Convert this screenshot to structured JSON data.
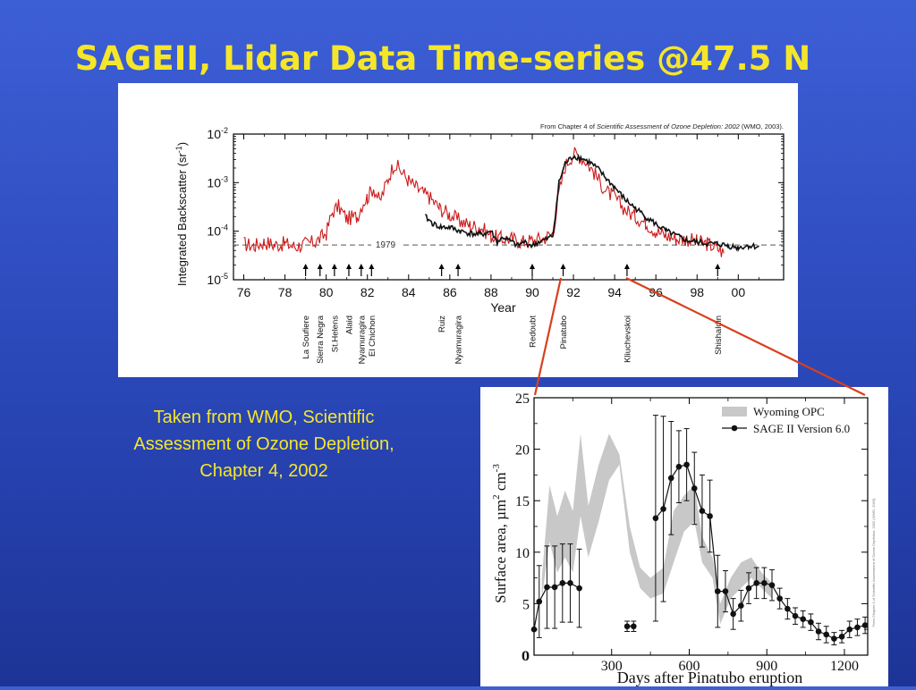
{
  "slide": {
    "title": "SAGEII, Lidar Data Time-series @47.5 N",
    "caption_lines": [
      "Taken from WMO, Scientific",
      "Assessment of Ozone Depletion,",
      "Chapter 4, 2002"
    ]
  },
  "colors": {
    "background": "#2a47b8",
    "title": "#f5e62a",
    "lidar_red": "#cc1a1a",
    "sage_black": "#111111",
    "opc_gray": "#c8c8c8",
    "connector_red": "#d8401c"
  },
  "chart_data": [
    {
      "type": "line",
      "yscale": "log",
      "xlabel": "Year",
      "ylabel_prefix": "Integrated Backscatter (sr",
      "ylabel_exp": "-1",
      "ylabel_suffix": ")",
      "source_note_prefix": "From Chapter 4 of ",
      "source_note_italic": "Scientific Assessment of Ozone Depletion: 2002",
      "source_note_suffix": " (WMO, 2003).",
      "xlim": [
        75.5,
        102.2
      ],
      "ylim": [
        1e-05,
        0.01
      ],
      "x_ticks": [
        76,
        78,
        80,
        82,
        84,
        86,
        88,
        90,
        92,
        94,
        96,
        98,
        0
      ],
      "x_tick_labels": [
        "76",
        "78",
        "80",
        "82",
        "84",
        "86",
        "88",
        "90",
        "92",
        "94",
        "96",
        "98",
        "00"
      ],
      "y_ticks": [
        {
          "value": 0.01,
          "base": "10",
          "exp": "-2"
        },
        {
          "value": 0.001,
          "base": "10",
          "exp": "-3"
        },
        {
          "value": 0.0001,
          "base": "10",
          "exp": "-4"
        },
        {
          "value": 1e-05,
          "base": "10",
          "exp": "-5"
        }
      ],
      "reference_line": {
        "label": "1979",
        "value": 5.2e-05
      },
      "series": [
        {
          "key": "lidar",
          "color": "#cc1a1a",
          "x": [
            76.0,
            76.5,
            77.0,
            77.5,
            78.0,
            78.5,
            79.0,
            79.5,
            80.0,
            80.3,
            80.6,
            81.0,
            81.5,
            81.8,
            82.0,
            82.3,
            82.6,
            83.0,
            83.3,
            83.6,
            84.0,
            84.5,
            85.0,
            85.5,
            86.0,
            86.5,
            87.0,
            87.5,
            88.0,
            88.5,
            89.0,
            89.5,
            90.0,
            90.5,
            91.0,
            91.3,
            91.6,
            92.0,
            92.3,
            92.6,
            93.0,
            93.3,
            93.6,
            94.0,
            94.3,
            94.6,
            95.0,
            95.5,
            96.0,
            96.5,
            97.0,
            97.5,
            98.0,
            98.5,
            99.0,
            99.3
          ],
          "y": [
            5.5e-05,
            5e-05,
            6e-05,
            5.2e-05,
            5.5e-05,
            4.8e-05,
            5.5e-05,
            6e-05,
            9e-05,
            0.00025,
            0.00032,
            0.00018,
            0.0002,
            0.0004,
            0.0005,
            0.0008,
            0.0004,
            0.0012,
            0.0025,
            0.0018,
            0.0011,
            0.0007,
            0.0005,
            0.0003,
            0.00022,
            0.00016,
            0.00013,
            0.00012,
            8e-05,
            7e-05,
            7e-05,
            6e-05,
            6.5e-05,
            7e-05,
            9e-05,
            0.0006,
            0.0022,
            0.004,
            0.0035,
            0.0028,
            0.0016,
            0.001,
            0.00065,
            0.0005,
            0.00035,
            0.00026,
            0.0002,
            0.00015,
            0.0001,
            8e-05,
            7e-05,
            7e-05,
            6e-05,
            5.5e-05,
            4.5e-05,
            3.5e-05
          ]
        },
        {
          "key": "sage",
          "color": "#111111",
          "x": [
            84.8,
            85.2,
            85.6,
            86.0,
            86.5,
            87.0,
            87.5,
            88.0,
            88.3,
            88.6,
            89.0,
            89.3,
            89.6,
            90.0,
            90.3,
            90.6,
            91.0,
            91.3,
            91.6,
            92.0,
            92.4,
            92.8,
            93.2,
            93.6,
            94.0,
            94.5,
            95.0,
            95.5,
            96.0,
            96.5,
            97.0,
            97.5,
            98.0,
            98.5,
            99.0,
            99.5,
            100.0,
            100.5,
            101.0
          ],
          "y": [
            0.0002,
            0.00014,
            0.00012,
            0.00012,
            0.0001,
            9e-05,
            8.5e-05,
            0.0001,
            6e-05,
            7.5e-05,
            6e-05,
            5e-05,
            6e-05,
            5e-05,
            6e-05,
            6.5e-05,
            8e-05,
            0.001,
            0.0025,
            0.0035,
            0.0032,
            0.0026,
            0.0019,
            0.0012,
            0.0008,
            0.00045,
            0.0003,
            0.0002,
            0.00014,
            0.0001,
            8e-05,
            6.5e-05,
            6e-05,
            5.5e-05,
            5.5e-05,
            5e-05,
            4.6e-05,
            5e-05,
            4.8e-05
          ]
        }
      ],
      "eruptions": [
        {
          "year": 79.0,
          "name": "La Soufiere"
        },
        {
          "year": 79.7,
          "name": "Sierra Negra"
        },
        {
          "year": 80.4,
          "name": "St.Helens"
        },
        {
          "year": 81.1,
          "name": "Alaid"
        },
        {
          "year": 81.7,
          "name": "Nyamuragira"
        },
        {
          "year": 82.2,
          "name": "El Chichon"
        },
        {
          "year": 85.6,
          "name": "Ruiz"
        },
        {
          "year": 86.4,
          "name": "Nyamuragira"
        },
        {
          "year": 90.0,
          "name": "Redoubt"
        },
        {
          "year": 91.5,
          "name": "Pinatubo"
        },
        {
          "year": 94.6,
          "name": "Kliuchevskoi"
        },
        {
          "year": 99.0,
          "name": "Shishaldin"
        }
      ]
    },
    {
      "type": "line",
      "xlabel": "Days after Pinatubo eruption",
      "ylabel_prefix": "Surface area, µm",
      "ylabel_exp1": "2",
      "ylabel_mid": " cm",
      "ylabel_exp2": "-3",
      "xlim": [
        0,
        1290
      ],
      "ylim": [
        0,
        25
      ],
      "x_ticks": [
        300,
        600,
        900,
        1200
      ],
      "x_tick_labels": [
        "300",
        "600",
        "900",
        "1200"
      ],
      "y_ticks": [
        0,
        5,
        10,
        15,
        20,
        25
      ],
      "y_tick_labels": [
        "0",
        "5",
        "10",
        "15",
        "20",
        "25"
      ],
      "side_note": "From Chapter 4 of Scientific Assessment of Ozone Depletion: 2002 (WMO, 2003).",
      "legend": {
        "position": "top-right",
        "entries": [
          "Wyoming OPC",
          "SAGE II Version 6.0"
        ]
      },
      "opc_band": {
        "color": "#c8c8c8",
        "x": [
          30,
          60,
          90,
          120,
          150,
          180,
          210,
          250,
          290,
          330,
          370,
          410,
          450,
          500,
          540,
          580,
          620,
          650,
          690,
          720,
          760,
          800,
          840,
          880,
          920
        ],
        "low": [
          5.5,
          11.0,
          8.0,
          9.5,
          8.0,
          13.5,
          9.5,
          13.0,
          17.0,
          18.5,
          10.0,
          6.5,
          5.5,
          6.0,
          9.0,
          12.0,
          13.0,
          9.0,
          7.5,
          3.0,
          5.5,
          6.5,
          7.5,
          6.5,
          5.5
        ],
        "high": [
          7.5,
          16.5,
          13.5,
          16.0,
          14.0,
          21.5,
          14.5,
          18.5,
          21.5,
          19.5,
          12.5,
          8.5,
          7.5,
          8.5,
          14.0,
          15.5,
          16.5,
          11.5,
          9.5,
          5.0,
          7.5,
          9.0,
          9.5,
          8.0,
          7.0
        ]
      },
      "sage": {
        "color": "#111111",
        "x": [
          0,
          20,
          50,
          80,
          110,
          140,
          175,
          360,
          385,
          470,
          500,
          530,
          560,
          590,
          620,
          650,
          680,
          710,
          740,
          770,
          800,
          830,
          860,
          890,
          920,
          950,
          980,
          1010,
          1040,
          1070,
          1100,
          1130,
          1160,
          1190,
          1220,
          1250,
          1280
        ],
        "y": [
          2.5,
          5.2,
          6.6,
          6.6,
          7.0,
          7.0,
          6.5,
          2.8,
          2.8,
          13.3,
          14.2,
          17.2,
          18.3,
          18.5,
          16.2,
          14.0,
          13.5,
          6.2,
          6.2,
          4.0,
          4.8,
          6.5,
          7.0,
          7.0,
          6.8,
          5.5,
          4.5,
          3.8,
          3.5,
          3.2,
          2.3,
          2.0,
          1.6,
          1.8,
          2.5,
          2.7,
          2.9
        ],
        "err": [
          0,
          3.5,
          4.0,
          4.0,
          3.8,
          3.8,
          3.8,
          0.5,
          0.5,
          10.0,
          9.0,
          5.5,
          3.5,
          3.5,
          3.5,
          3.5,
          3.5,
          3.5,
          2.0,
          1.5,
          1.5,
          1.5,
          1.5,
          1.5,
          1.5,
          1.0,
          1.0,
          0.8,
          0.8,
          0.8,
          0.8,
          0.8,
          0.6,
          0.6,
          0.8,
          0.8,
          0.8
        ]
      }
    }
  ]
}
